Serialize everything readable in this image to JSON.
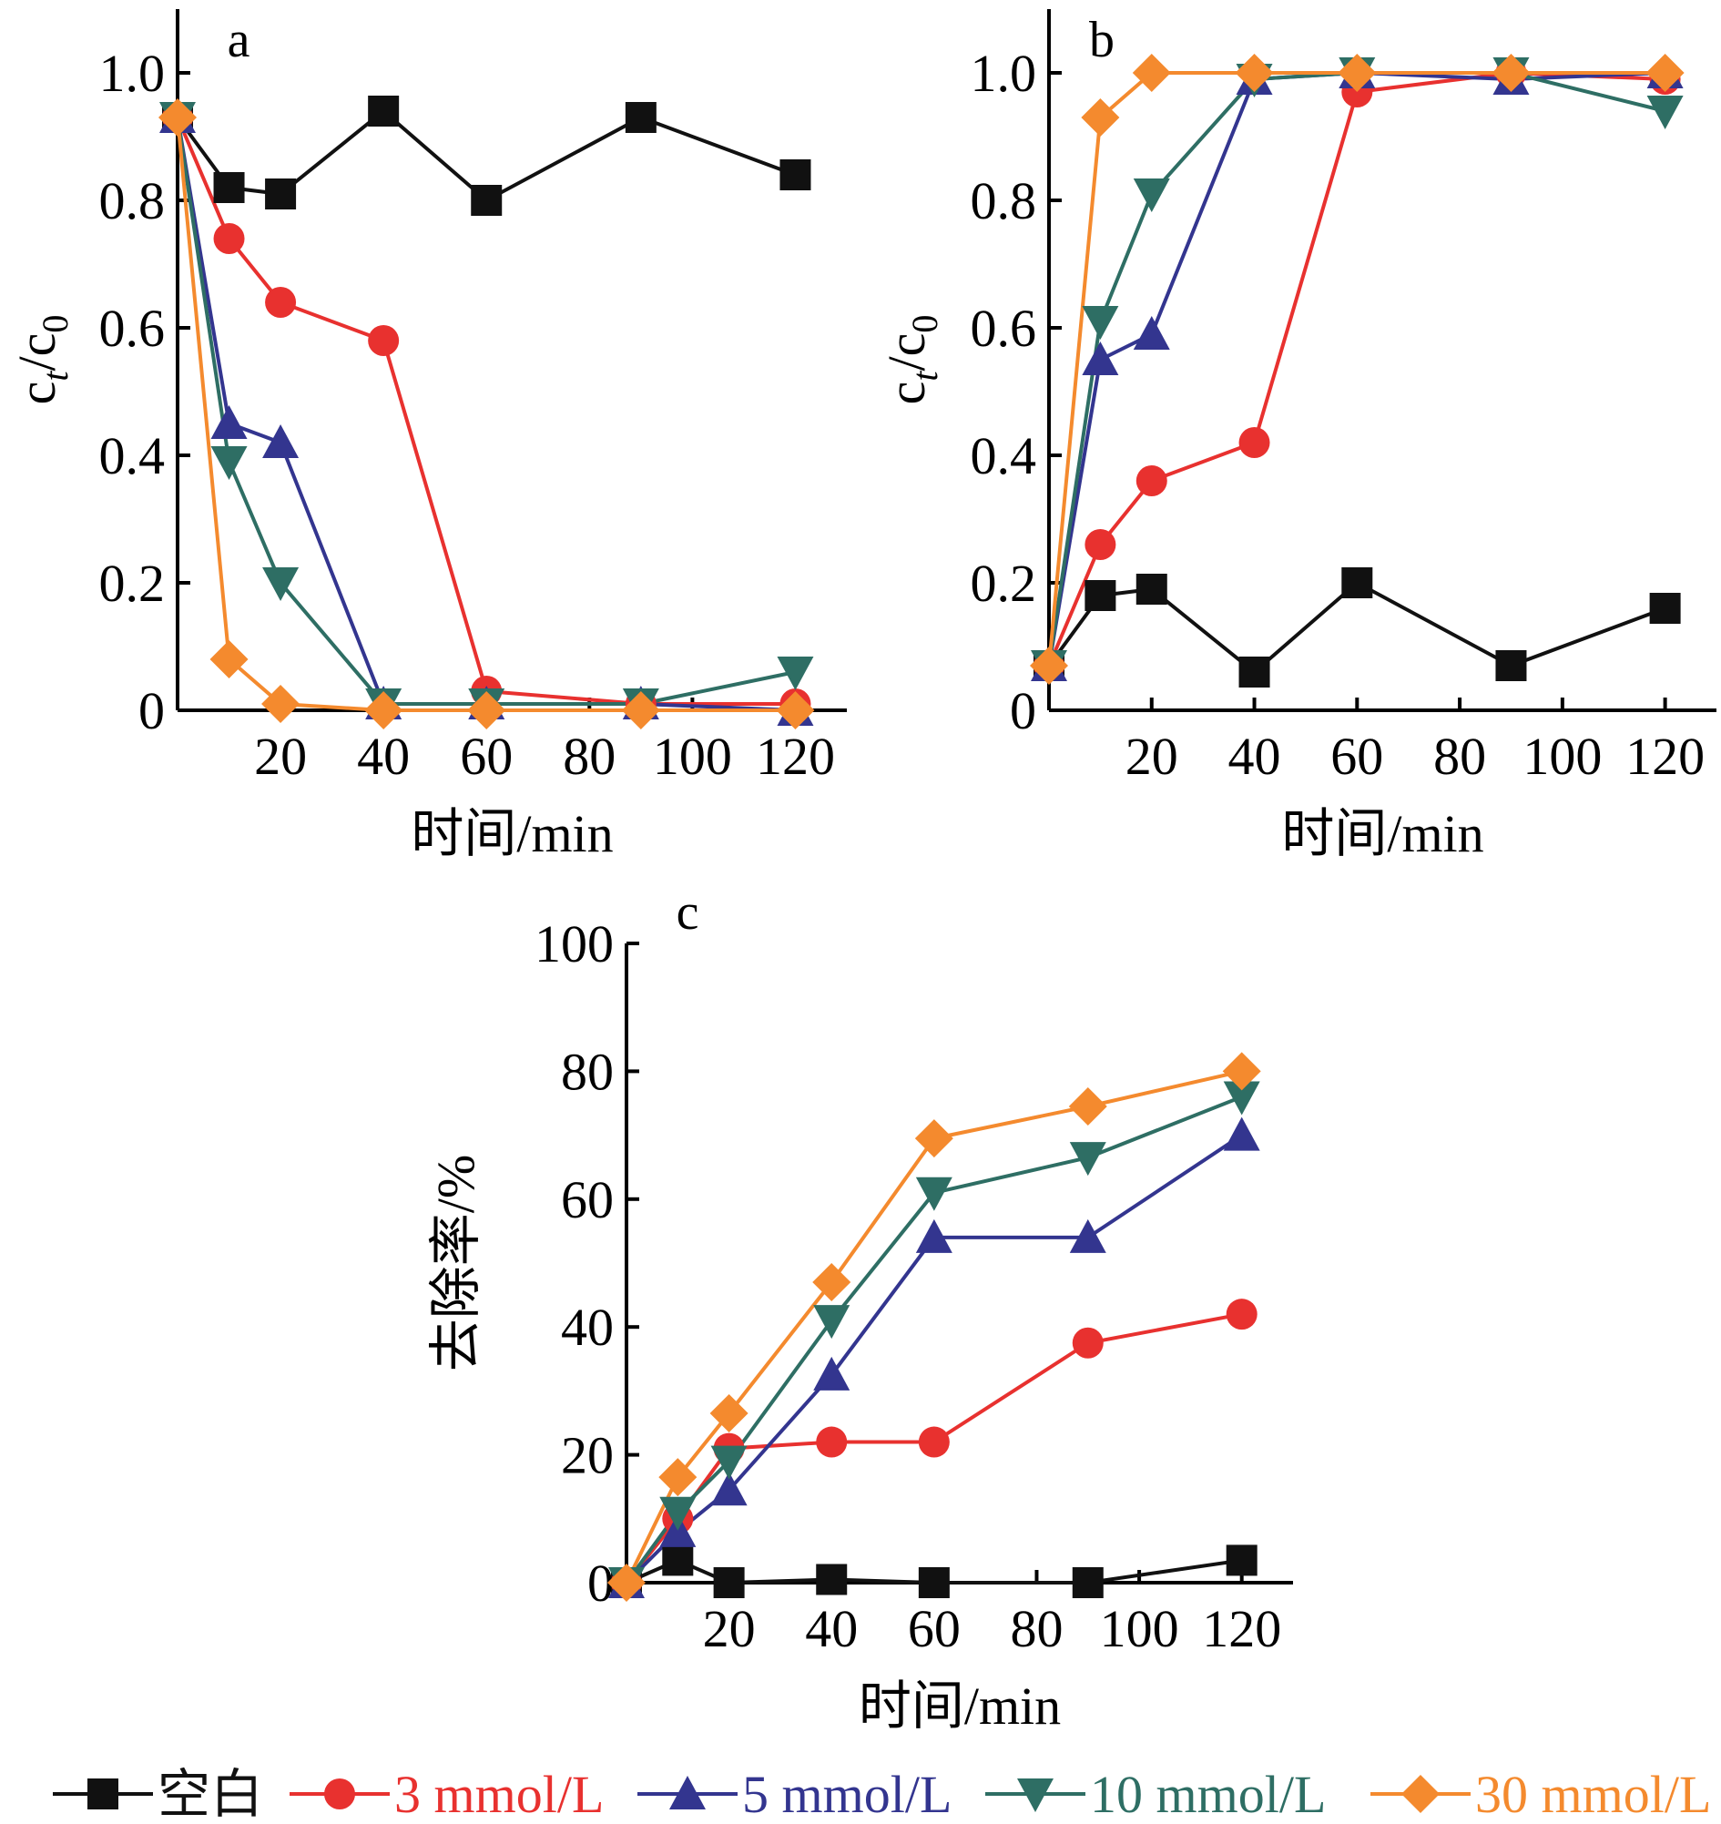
{
  "legend": [
    {
      "label": "空白",
      "color": "#111111",
      "marker": "square"
    },
    {
      "label": "3 mmol/L",
      "color": "#e8312f",
      "marker": "circle"
    },
    {
      "label": "5 mmol/L",
      "color": "#33358f",
      "marker": "triangle-up"
    },
    {
      "label": "10 mmol/L",
      "color": "#2e6e64",
      "marker": "triangle-down"
    },
    {
      "label": "30 mmol/L",
      "color": "#f48a2e",
      "marker": "diamond"
    }
  ],
  "chart_data": [
    {
      "panel": "a",
      "type": "line",
      "xlabel": "时间/min",
      "ylabel_base": "c",
      "ylabel_sub1": "t",
      "ylabel_mid": "/c",
      "ylabel_sub2": "0",
      "xlim": [
        0,
        130
      ],
      "ylim": [
        0,
        1.1
      ],
      "xticks": [
        20,
        40,
        60,
        80,
        100,
        120
      ],
      "xtick_labels": [
        "20",
        "40",
        "60",
        "80",
        "100",
        "120"
      ],
      "yticks": [
        0,
        0.2,
        0.4,
        0.6,
        0.8,
        1.0
      ],
      "ytick_labels": [
        "0",
        "0.2",
        "0.4",
        "0.6",
        "0.8",
        "1.0"
      ],
      "x": [
        0,
        10,
        20,
        40,
        60,
        90,
        120
      ],
      "series": [
        {
          "name": "空白",
          "values": [
            0.93,
            0.82,
            0.81,
            0.94,
            0.8,
            0.93,
            0.84
          ]
        },
        {
          "name": "3 mmol/L",
          "values": [
            0.93,
            0.74,
            0.64,
            0.58,
            0.03,
            0.01,
            0.01
          ]
        },
        {
          "name": "5 mmol/L",
          "values": [
            0.93,
            0.45,
            0.42,
            0.01,
            0.01,
            0.01,
            0.0
          ]
        },
        {
          "name": "10 mmol/L",
          "values": [
            0.93,
            0.39,
            0.2,
            0.01,
            0.01,
            0.01,
            0.06
          ]
        },
        {
          "name": "30 mmol/L",
          "values": [
            0.93,
            0.08,
            0.01,
            0.0,
            0.0,
            0.0,
            0.0
          ]
        }
      ]
    },
    {
      "panel": "b",
      "type": "line",
      "xlabel": "时间/min",
      "ylabel_base": "c",
      "ylabel_sub1": "t",
      "ylabel_mid": "/c",
      "ylabel_sub2": "0",
      "xlim": [
        0,
        130
      ],
      "ylim": [
        0,
        1.1
      ],
      "xticks": [
        20,
        40,
        60,
        80,
        100,
        120
      ],
      "xtick_labels": [
        "20",
        "40",
        "60",
        "80",
        "100",
        "120"
      ],
      "yticks": [
        0,
        0.2,
        0.4,
        0.6,
        0.8,
        1.0
      ],
      "ytick_labels": [
        "0",
        "0.2",
        "0.4",
        "0.6",
        "0.8",
        "1.0"
      ],
      "x": [
        0,
        10,
        20,
        40,
        60,
        90,
        120
      ],
      "series": [
        {
          "name": "空白",
          "values": [
            0.07,
            0.18,
            0.19,
            0.06,
            0.2,
            0.07,
            0.16
          ]
        },
        {
          "name": "3 mmol/L",
          "values": [
            0.07,
            0.26,
            0.36,
            0.42,
            0.97,
            1.0,
            0.99
          ]
        },
        {
          "name": "5 mmol/L",
          "values": [
            0.07,
            0.55,
            0.59,
            0.99,
            1.0,
            0.99,
            1.0
          ]
        },
        {
          "name": "10 mmol/L",
          "values": [
            0.07,
            0.61,
            0.81,
            0.99,
            1.0,
            1.0,
            0.94
          ]
        },
        {
          "name": "30 mmol/L",
          "values": [
            0.07,
            0.93,
            1.0,
            1.0,
            1.0,
            1.0,
            1.0
          ]
        }
      ]
    },
    {
      "panel": "c",
      "type": "line",
      "xlabel": "时间/min",
      "ylabel": "去除率/%",
      "xlim": [
        0,
        130
      ],
      "ylim": [
        0,
        100
      ],
      "xticks": [
        20,
        40,
        60,
        80,
        100,
        120
      ],
      "xtick_labels": [
        "20",
        "40",
        "60",
        "80",
        "100",
        "120"
      ],
      "yticks": [
        0,
        20,
        40,
        60,
        80,
        100
      ],
      "ytick_labels": [
        "0",
        "20",
        "40",
        "60",
        "80",
        "100"
      ],
      "x": [
        0,
        10,
        20,
        40,
        60,
        90,
        120
      ],
      "series": [
        {
          "name": "空白",
          "values": [
            0,
            3.5,
            0,
            0.5,
            0,
            0,
            3.5
          ]
        },
        {
          "name": "3 mmol/L",
          "values": [
            0,
            10,
            21,
            22,
            22,
            37.5,
            42
          ]
        },
        {
          "name": "5 mmol/L",
          "values": [
            0,
            8,
            14.5,
            32.5,
            54,
            54,
            70
          ]
        },
        {
          "name": "10 mmol/L",
          "values": [
            0,
            11,
            19,
            41,
            61,
            66.5,
            76
          ]
        },
        {
          "name": "30 mmol/L",
          "values": [
            0,
            16.5,
            26.5,
            47,
            69.5,
            74.5,
            80
          ]
        }
      ]
    }
  ]
}
